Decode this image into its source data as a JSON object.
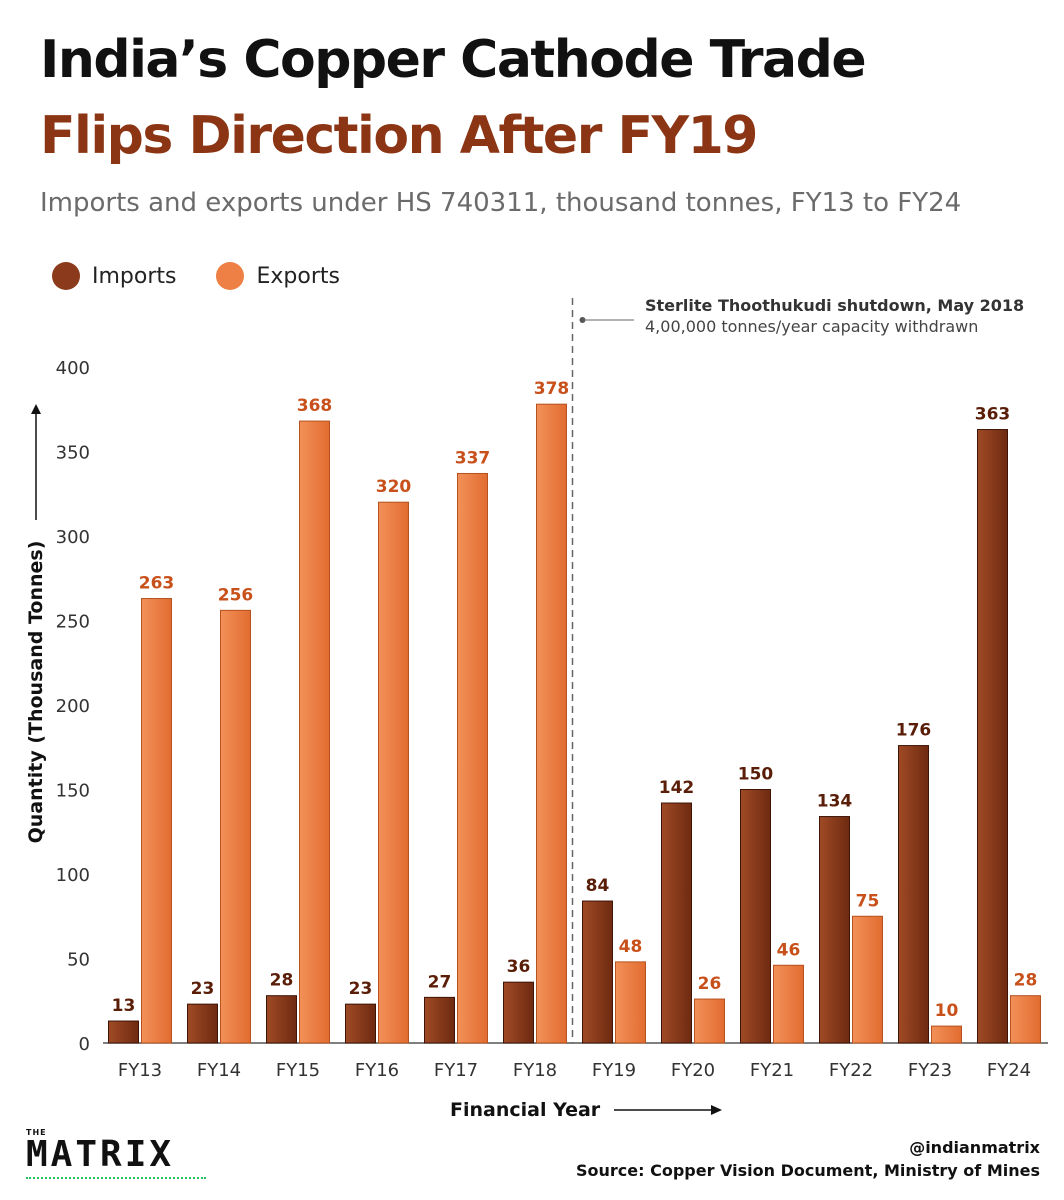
{
  "header": {
    "title_line1": "India’s Copper Cathode Trade",
    "title_line2": "Flips Direction After FY19",
    "subtitle": "Imports and exports under HS 740311, thousand tonnes, FY13 to FY24"
  },
  "annotation": {
    "title": "Sterlite Thoothukudi shutdown, May 2018",
    "subtitle": "4,00,000 tonnes/year capacity withdrawn"
  },
  "footer": {
    "handle": "@indianmatrix",
    "source": "Source: Copper Vision Document, Ministry of Mines",
    "logo_small": "THE",
    "logo_main": "MATRIX"
  },
  "colors": {
    "imports": "#8b3a1c",
    "exports": "#ee7f45",
    "imports_label": "#5a1e08",
    "exports_label": "#c8501a"
  },
  "chart_data": {
    "type": "bar",
    "categories": [
      "FY13",
      "FY14",
      "FY15",
      "FY16",
      "FY17",
      "FY18",
      "FY19",
      "FY20",
      "FY21",
      "FY22",
      "FY23",
      "FY24"
    ],
    "series": [
      {
        "name": "Imports",
        "values": [
          13,
          23,
          28,
          23,
          27,
          36,
          84,
          142,
          150,
          134,
          176,
          363
        ]
      },
      {
        "name": "Exports",
        "values": [
          263,
          256,
          368,
          320,
          337,
          378,
          48,
          26,
          46,
          75,
          10,
          28
        ]
      }
    ],
    "xlabel": "Financial Year",
    "ylabel": "Quantity (Thousand Tonnes)",
    "ylim": [
      0,
      400
    ],
    "yticks": [
      0,
      50,
      100,
      150,
      200,
      250,
      300,
      350,
      400
    ],
    "legend_position": "top-left",
    "grid": false,
    "marker_between": [
      "FY18",
      "FY19"
    ]
  }
}
